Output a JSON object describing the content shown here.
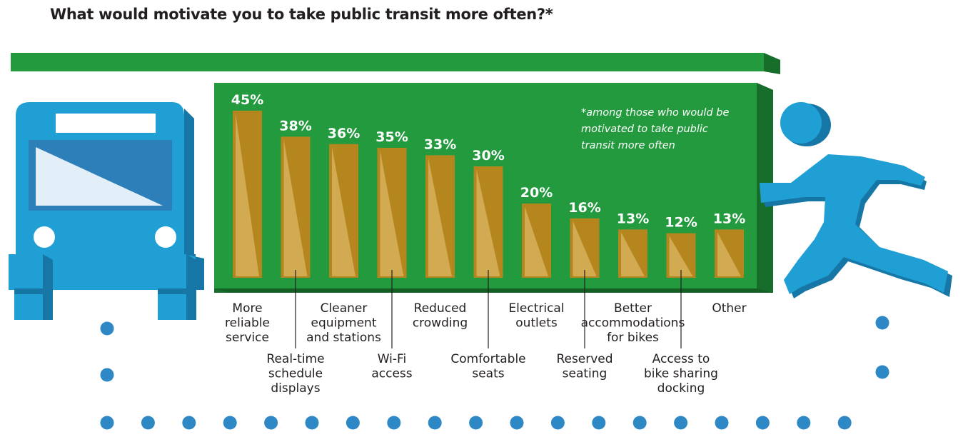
{
  "chart_data": {
    "type": "bar",
    "title": "What would motivate you to take public transit more often?*",
    "footnote": [
      "*among those who would be",
      "motivated to take public",
      "transit more often"
    ],
    "categories": [
      {
        "label": [
          "More",
          "reliable",
          "service"
        ],
        "value": 45,
        "value_label": "45%",
        "label_row": "upper"
      },
      {
        "label": [
          "Real-time",
          "schedule",
          "displays"
        ],
        "value": 38,
        "value_label": "38%",
        "label_row": "lower"
      },
      {
        "label": [
          "Cleaner",
          "equipment",
          "and stations"
        ],
        "value": 36,
        "value_label": "36%",
        "label_row": "upper"
      },
      {
        "label": [
          "Wi-Fi",
          "access"
        ],
        "value": 35,
        "value_label": "35%",
        "label_row": "lower"
      },
      {
        "label": [
          "Reduced",
          "crowding"
        ],
        "value": 33,
        "value_label": "33%",
        "label_row": "upper"
      },
      {
        "label": [
          "Comfortable",
          "seats"
        ],
        "value": 30,
        "value_label": "30%",
        "label_row": "lower"
      },
      {
        "label": [
          "Electrical",
          "outlets"
        ],
        "value": 20,
        "value_label": "20%",
        "label_row": "upper"
      },
      {
        "label": [
          "Reserved",
          "seating"
        ],
        "value": 16,
        "value_label": "16%",
        "label_row": "lower"
      },
      {
        "label": [
          "Better",
          "accommodations",
          "for bikes"
        ],
        "value": 13,
        "value_label": "13%",
        "label_row": "upper"
      },
      {
        "label": [
          "Access to",
          "bike sharing",
          "docking"
        ],
        "value": 12,
        "value_label": "12%",
        "label_row": "lower"
      },
      {
        "label": [
          "Other"
        ],
        "value": 13,
        "value_label": "13%",
        "label_row": "upper"
      }
    ],
    "ylim": [
      0,
      45
    ],
    "colors": {
      "bar": "#b5861e",
      "bar_highlight": "#d1aa52",
      "board": "#239a3e",
      "board_dark": "#176e2a",
      "figure_blue": "#1f9fd3",
      "figure_blue_dark": "#1677a6",
      "dots": "#2f88c6"
    }
  }
}
